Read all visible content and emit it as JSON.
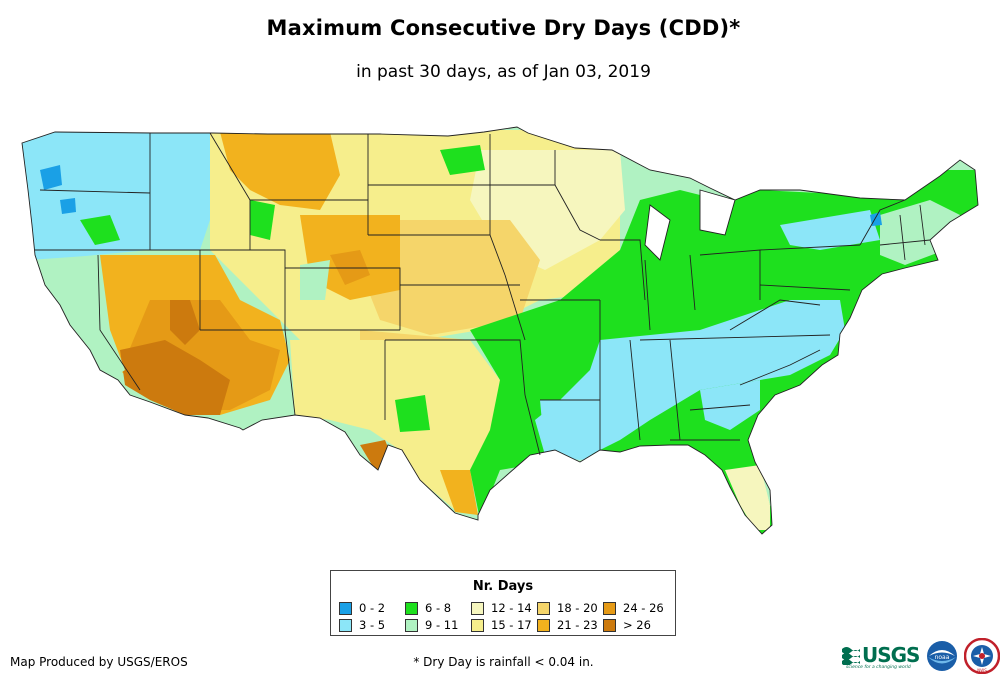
{
  "header": {
    "title": "Maximum Consecutive Dry Days (CDD)*",
    "subtitle": "in past 30 days, as of Jan 03, 2019"
  },
  "legend": {
    "title": "Nr. Days",
    "items": [
      {
        "label": "0 - 2",
        "color": "#1aa0e6"
      },
      {
        "label": "6 - 8",
        "color": "#1ee01e"
      },
      {
        "label": "12 - 14",
        "color": "#f6f6be"
      },
      {
        "label": "18 - 20",
        "color": "#f5d56a"
      },
      {
        "label": "24 - 26",
        "color": "#e59a16"
      },
      {
        "label": "3 - 5",
        "color": "#8ce6f8"
      },
      {
        "label": "9 - 11",
        "color": "#b0f2c2"
      },
      {
        "label": "15 - 17",
        "color": "#f6ee8c"
      },
      {
        "label": "21 - 23",
        "color": "#f2b21e"
      },
      {
        "label": "> 26",
        "color": "#cc7a0e"
      }
    ]
  },
  "footer": {
    "producer": "Map Produced by USGS/EROS",
    "footnote": "* Dry Day is rainfall < 0.04 in."
  },
  "logos": {
    "usgs": "USGS",
    "usgs_tagline": "science for a changing world",
    "noaa": "noaa",
    "nws": "NWS"
  },
  "icons": {
    "usgs": "usgs-logo-icon",
    "noaa": "noaa-logo-icon",
    "nws": "nws-logo-icon"
  }
}
